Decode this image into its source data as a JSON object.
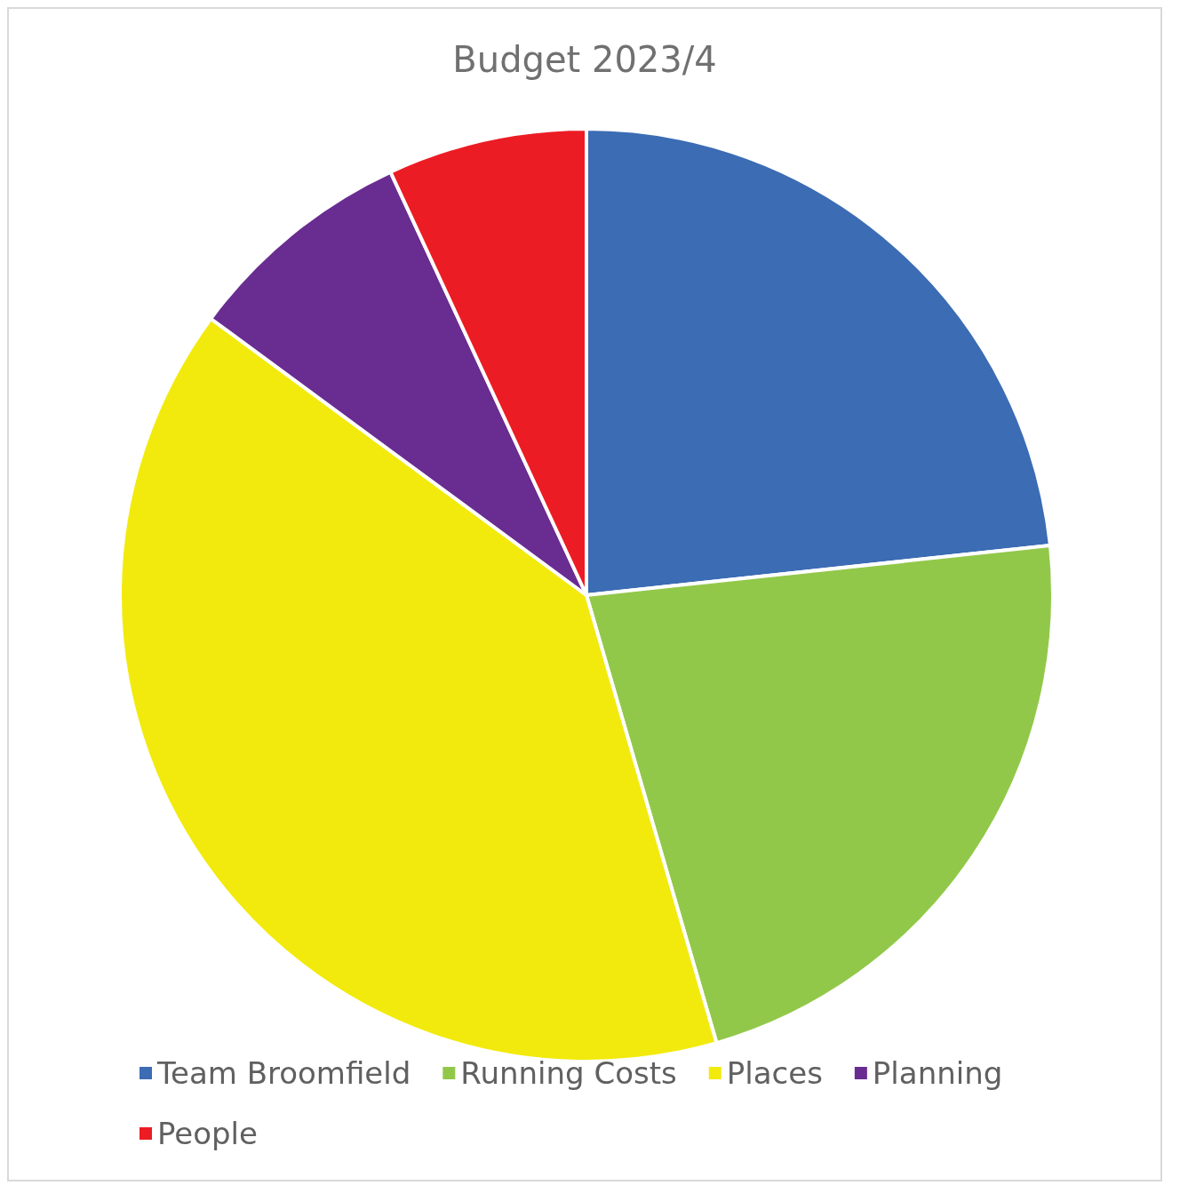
{
  "chart_data": {
    "type": "pie",
    "title": "Budget 2023/4",
    "categories": [
      "Team Broomfield",
      "Running Costs",
      "Places",
      "Planning",
      "People"
    ],
    "values": [
      23.3,
      22.2,
      39.6,
      8.0,
      6.9
    ],
    "colors": [
      "#3b6cb4",
      "#92c84a",
      "#f2ea0c",
      "#692c91",
      "#ec1c24"
    ],
    "legend": "bottom"
  }
}
